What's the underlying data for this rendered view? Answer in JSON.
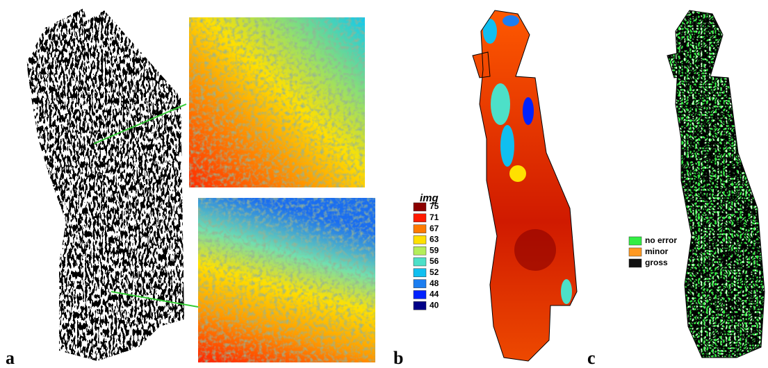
{
  "panels": [
    {
      "label": "a"
    },
    {
      "label": "b",
      "legend": {
        "title": "img",
        "items": [
          {
            "value": 75,
            "color": "#8b0000"
          },
          {
            "value": 71,
            "color": "#ff1a00"
          },
          {
            "value": 67,
            "color": "#ff7a00"
          },
          {
            "value": 63,
            "color": "#ffe000"
          },
          {
            "value": 59,
            "color": "#b4ee5a"
          },
          {
            "value": 56,
            "color": "#4de0c8"
          },
          {
            "value": 52,
            "color": "#10bff0"
          },
          {
            "value": 48,
            "color": "#1c7ef0"
          },
          {
            "value": 44,
            "color": "#0022ff"
          },
          {
            "value": 40,
            "color": "#000088"
          }
        ]
      }
    },
    {
      "label": "c",
      "legend": {
        "items": [
          {
            "label": "no error",
            "color": "#33ee44"
          },
          {
            "label": "minor",
            "color": "#ff9922"
          },
          {
            "label": "gross",
            "color": "#111111"
          }
        ]
      }
    }
  ]
}
